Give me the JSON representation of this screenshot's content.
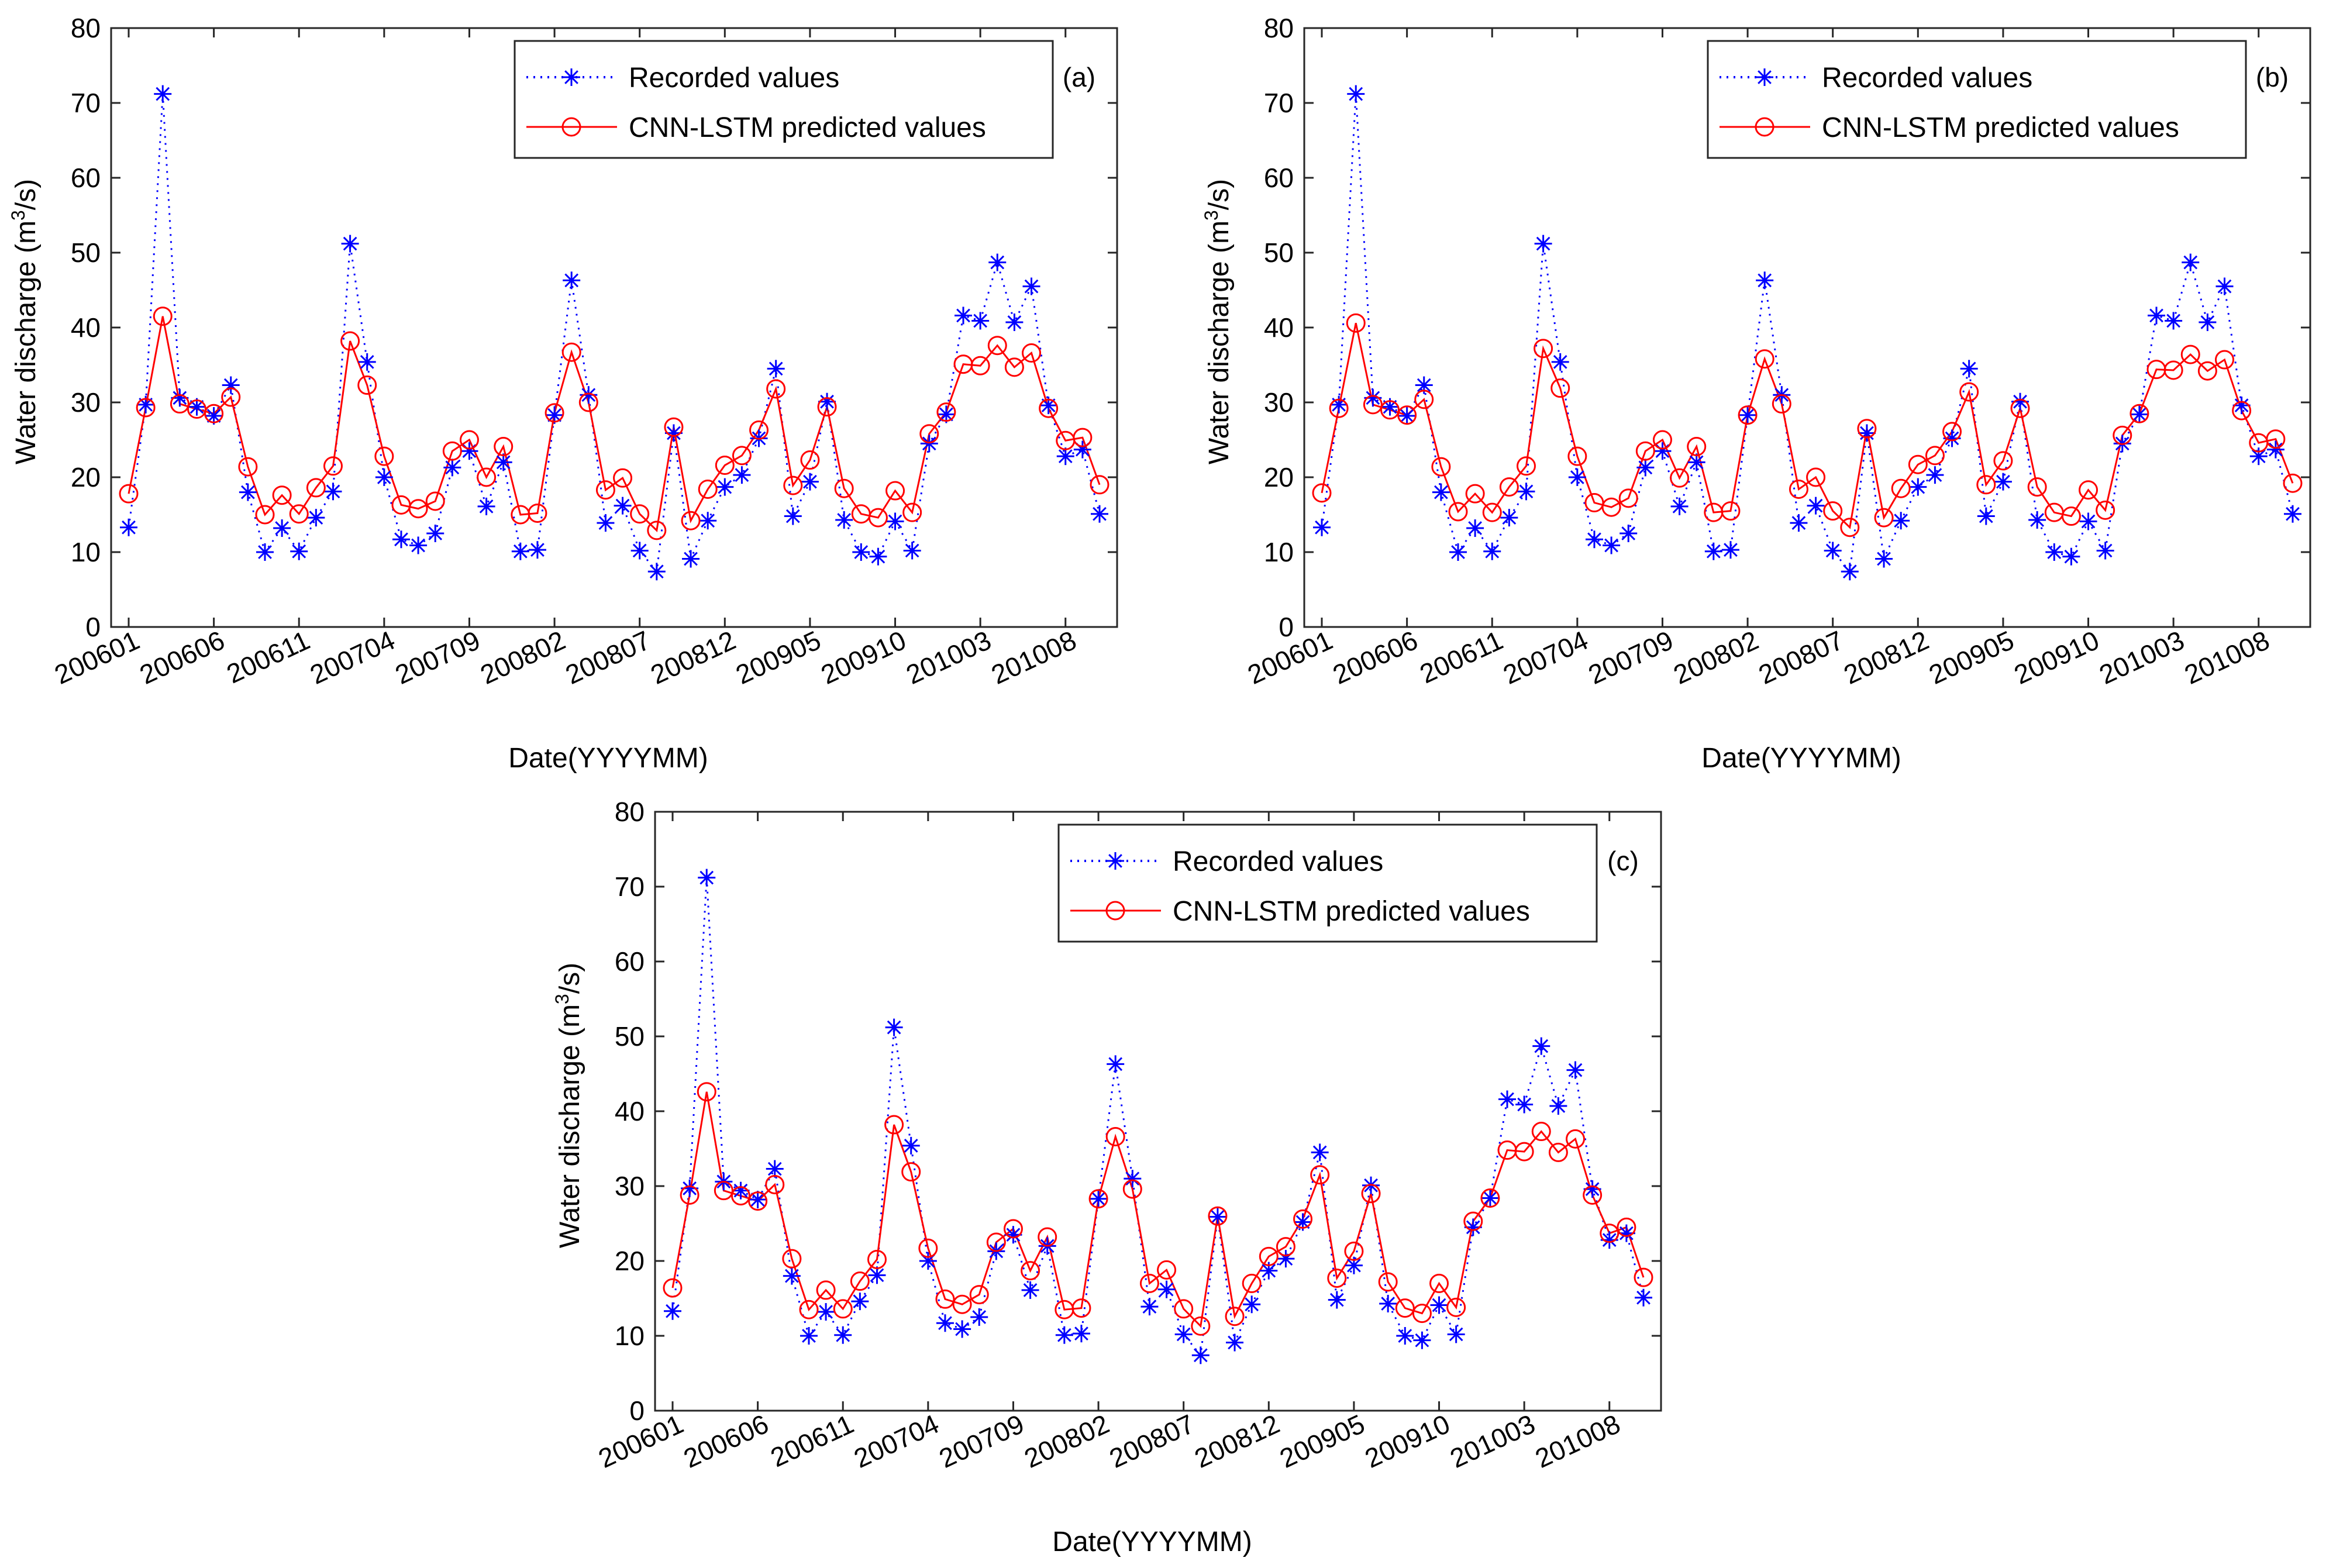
{
  "figure": {
    "colors": {
      "recorded": "#0000ff",
      "predicted": "#ff0000",
      "axis": "#262626"
    }
  },
  "chart_data": [
    {
      "type": "line",
      "panel_label": "(a)",
      "xlabel": "Date(YYYYMM)",
      "ylabel_main": "Water discharge (m",
      "ylabel_sup": "3",
      "ylabel_tail": "/s)",
      "ylim": [
        0,
        80
      ],
      "yticks": [
        0,
        10,
        20,
        30,
        40,
        50,
        60,
        70,
        80
      ],
      "xtick_labels": [
        "200601",
        "200606",
        "200611",
        "200704",
        "200709",
        "200802",
        "200807",
        "200812",
        "200905",
        "200910",
        "201003",
        "201008"
      ],
      "xtick_indices": [
        0,
        5,
        10,
        15,
        20,
        25,
        30,
        35,
        40,
        45,
        50,
        55
      ],
      "legend": [
        "Recorded values",
        "CNN-LSTM predicted values"
      ],
      "series": [
        {
          "name": "Recorded values",
          "values": [
            13.3,
            29.7,
            71.2,
            30.6,
            29.4,
            28.2,
            32.3,
            18.0,
            10.0,
            13.2,
            10.1,
            14.6,
            18.1,
            51.2,
            35.4,
            20.0,
            11.7,
            10.9,
            12.5,
            21.3,
            23.5,
            16.1,
            22.0,
            10.1,
            10.3,
            28.3,
            46.3,
            31.0,
            13.9,
            16.2,
            10.2,
            7.4,
            25.9,
            9.1,
            14.2,
            18.7,
            20.3,
            25.2,
            34.5,
            14.8,
            19.4,
            30.1,
            14.3,
            10.0,
            9.4,
            14.1,
            10.2,
            24.5,
            28.4,
            41.6,
            40.9,
            48.7,
            40.7,
            45.5,
            29.6,
            22.8,
            23.7,
            15.1
          ]
        },
        {
          "name": "CNN-LSTM predicted values",
          "values": [
            17.8,
            29.3,
            41.5,
            29.8,
            29.1,
            28.5,
            30.7,
            21.4,
            15.0,
            17.6,
            15.1,
            18.6,
            21.5,
            38.2,
            32.3,
            22.8,
            16.3,
            15.8,
            16.8,
            23.5,
            25.0,
            20.0,
            24.1,
            15.0,
            15.2,
            28.6,
            36.7,
            30.0,
            18.3,
            19.9,
            15.1,
            12.9,
            26.7,
            14.2,
            18.4,
            21.6,
            22.9,
            26.3,
            31.8,
            18.9,
            22.3,
            29.4,
            18.5,
            15.1,
            14.6,
            18.2,
            15.3,
            25.8,
            28.7,
            35.1,
            34.9,
            37.6,
            34.7,
            36.6,
            29.2,
            24.9,
            25.3,
            19.0
          ]
        }
      ]
    },
    {
      "type": "line",
      "panel_label": "(b)",
      "xlabel": "Date(YYYYMM)",
      "ylabel_main": "Water discharge (m",
      "ylabel_sup": "3",
      "ylabel_tail": "/s)",
      "ylim": [
        0,
        80
      ],
      "yticks": [
        0,
        10,
        20,
        30,
        40,
        50,
        60,
        70,
        80
      ],
      "xtick_labels": [
        "200601",
        "200606",
        "200611",
        "200704",
        "200709",
        "200802",
        "200807",
        "200812",
        "200905",
        "200910",
        "201003",
        "201008"
      ],
      "xtick_indices": [
        0,
        5,
        10,
        15,
        20,
        25,
        30,
        35,
        40,
        45,
        50,
        55
      ],
      "legend": [
        "Recorded values",
        "CNN-LSTM predicted values"
      ],
      "series": [
        {
          "name": "Recorded values",
          "values": [
            13.3,
            29.7,
            71.2,
            30.6,
            29.4,
            28.2,
            32.3,
            18.0,
            10.0,
            13.2,
            10.1,
            14.6,
            18.1,
            51.2,
            35.4,
            20.0,
            11.7,
            10.9,
            12.5,
            21.3,
            23.5,
            16.1,
            22.0,
            10.1,
            10.3,
            28.3,
            46.3,
            31.0,
            13.9,
            16.2,
            10.2,
            7.4,
            25.9,
            9.1,
            14.2,
            18.7,
            20.3,
            25.2,
            34.5,
            14.8,
            19.4,
            30.1,
            14.3,
            10.0,
            9.4,
            14.1,
            10.2,
            24.5,
            28.4,
            41.6,
            40.9,
            48.7,
            40.7,
            45.5,
            29.6,
            22.8,
            23.7,
            15.1
          ]
        },
        {
          "name": "CNN-LSTM predicted values",
          "values": [
            17.9,
            29.2,
            40.6,
            29.7,
            29.0,
            28.3,
            30.4,
            21.4,
            15.4,
            17.8,
            15.3,
            18.7,
            21.5,
            37.2,
            31.9,
            22.8,
            16.6,
            16.0,
            17.2,
            23.5,
            25.0,
            19.9,
            24.1,
            15.3,
            15.5,
            28.3,
            35.8,
            29.8,
            18.4,
            20.0,
            15.5,
            13.3,
            26.5,
            14.6,
            18.5,
            21.7,
            22.9,
            26.1,
            31.4,
            19.0,
            22.2,
            29.2,
            18.7,
            15.3,
            14.8,
            18.3,
            15.6,
            25.6,
            28.5,
            34.4,
            34.3,
            36.4,
            34.2,
            35.7,
            28.9,
            24.6,
            25.1,
            19.2
          ]
        }
      ]
    },
    {
      "type": "line",
      "panel_label": "(c)",
      "xlabel": "Date(YYYYMM)",
      "ylabel_main": "Water discharge (m",
      "ylabel_sup": "3",
      "ylabel_tail": "/s)",
      "ylim": [
        0,
        80
      ],
      "yticks": [
        0,
        10,
        20,
        30,
        40,
        50,
        60,
        70,
        80
      ],
      "xtick_labels": [
        "200601",
        "200606",
        "200611",
        "200704",
        "200709",
        "200802",
        "200807",
        "200812",
        "200905",
        "200910",
        "201003",
        "201008"
      ],
      "xtick_indices": [
        0,
        5,
        10,
        15,
        20,
        25,
        30,
        35,
        40,
        45,
        50,
        55
      ],
      "legend": [
        "Recorded values",
        "CNN-LSTM predicted values"
      ],
      "series": [
        {
          "name": "Recorded values",
          "values": [
            13.3,
            29.7,
            71.2,
            30.6,
            29.4,
            28.2,
            32.3,
            18.0,
            10.0,
            13.2,
            10.1,
            14.6,
            18.1,
            51.2,
            35.4,
            20.0,
            11.7,
            10.9,
            12.5,
            21.3,
            23.5,
            16.1,
            22.0,
            10.1,
            10.3,
            28.3,
            46.3,
            31.0,
            13.9,
            16.2,
            10.2,
            7.4,
            25.9,
            9.1,
            14.2,
            18.7,
            20.3,
            25.2,
            34.5,
            14.8,
            19.4,
            30.1,
            14.3,
            10.0,
            9.4,
            14.1,
            10.2,
            24.5,
            28.4,
            41.6,
            40.9,
            48.7,
            40.7,
            45.5,
            29.6,
            22.8,
            23.7,
            15.1
          ]
        },
        {
          "name": "CNN-LSTM predicted values",
          "values": [
            16.4,
            28.8,
            42.6,
            29.4,
            28.7,
            28.0,
            30.2,
            20.3,
            13.5,
            16.1,
            13.6,
            17.3,
            20.2,
            38.2,
            31.9,
            21.7,
            14.9,
            14.2,
            15.5,
            22.5,
            24.3,
            18.7,
            23.2,
            13.5,
            13.7,
            28.3,
            36.6,
            29.6,
            17.0,
            18.8,
            13.6,
            11.3,
            26.0,
            12.6,
            17.0,
            20.6,
            21.9,
            25.6,
            31.5,
            17.7,
            21.3,
            29.0,
            17.2,
            13.7,
            13.0,
            17.0,
            13.8,
            25.3,
            28.4,
            34.8,
            34.6,
            37.3,
            34.5,
            36.3,
            28.8,
            23.7,
            24.5,
            17.8
          ]
        }
      ]
    }
  ]
}
